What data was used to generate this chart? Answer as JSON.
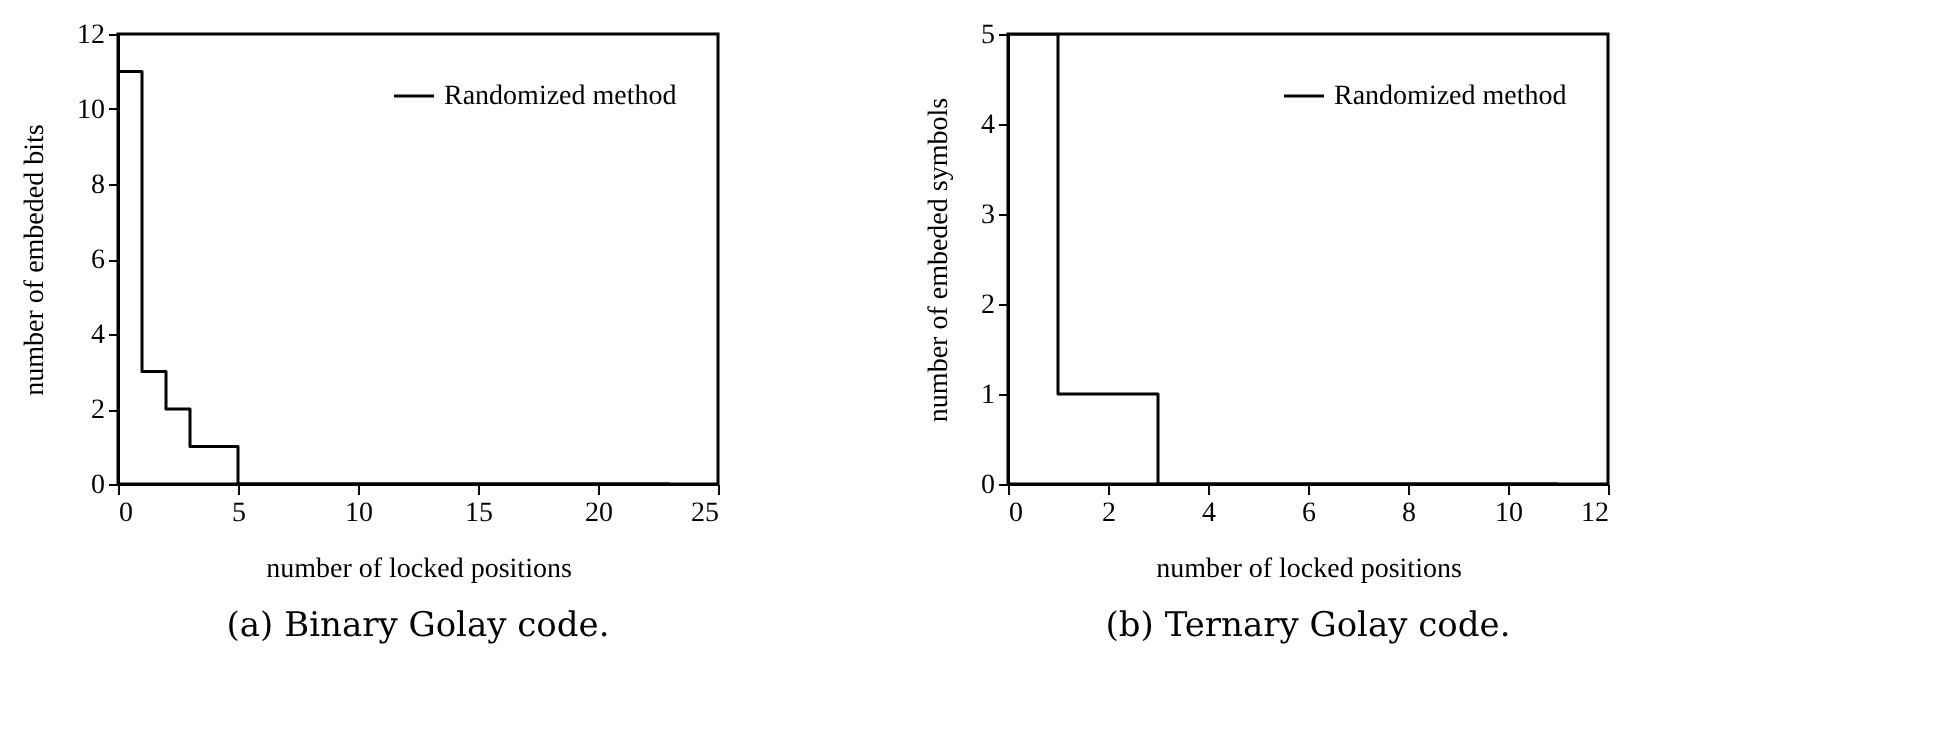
{
  "chart_data": [
    {
      "type": "step",
      "title": "(a) Binary Golay code.",
      "xlabel": "number of locked positions",
      "ylabel": "number of embeded bits",
      "x": [
        0,
        1,
        2,
        3,
        5,
        23
      ],
      "series": [
        {
          "name": "Randomized method",
          "color": "#000000",
          "values": [
            11,
            3,
            2,
            1,
            0,
            0
          ]
        }
      ],
      "xlim": [
        0,
        25
      ],
      "xticks": [
        0,
        5,
        10,
        15,
        20,
        25
      ],
      "ylim": [
        0,
        12
      ],
      "yticks": [
        0,
        2,
        4,
        6,
        8,
        10,
        12
      ],
      "legend": "top right"
    },
    {
      "type": "step",
      "title": "(b) Ternary Golay code.",
      "xlabel": "number of locked positions",
      "ylabel": "number of embeded symbols",
      "x": [
        0,
        1,
        3,
        11
      ],
      "series": [
        {
          "name": "Randomized method",
          "color": "#000000",
          "values": [
            5,
            1,
            0,
            0
          ]
        }
      ],
      "xlim": [
        0,
        12
      ],
      "xticks": [
        0,
        2,
        4,
        6,
        8,
        10,
        12
      ],
      "ylim": [
        0,
        5
      ],
      "yticks": [
        0,
        1,
        2,
        3,
        4,
        5
      ],
      "legend": "top right"
    }
  ]
}
